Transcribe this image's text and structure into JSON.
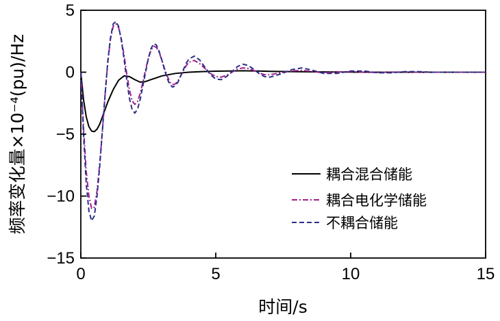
{
  "chart_data": {
    "type": "line",
    "xlabel": "时间/s",
    "ylabel": "频率变化量×10⁻⁴(pu)/Hz",
    "xlim": [
      0,
      15
    ],
    "ylim": [
      -15,
      5
    ],
    "x_ticks": [
      0,
      5,
      10,
      15
    ],
    "x_tick_labels": [
      "0",
      "5",
      "10",
      "15"
    ],
    "y_ticks": [
      5,
      0,
      -5,
      -10,
      -15
    ],
    "y_tick_labels": [
      "5",
      "0",
      "−5",
      "−10",
      "−15"
    ],
    "grid": false,
    "legend_position": "bottom-right",
    "series": [
      {
        "name": "耦合混合储能",
        "color": "#000000",
        "dash": "solid",
        "x": [
          0,
          0.1,
          0.2,
          0.3,
          0.4,
          0.5,
          0.6,
          0.7,
          0.8,
          0.9,
          1.0,
          1.2,
          1.4,
          1.6,
          1.8,
          2.0,
          2.2,
          2.4,
          2.6,
          2.8,
          3.0,
          3.5,
          4.0,
          4.5,
          5.0,
          5.5,
          6.0,
          6.5,
          7.0,
          8.0,
          9.0,
          10.0,
          11.0,
          12.0,
          13.0,
          14.0,
          15.0
        ],
        "y": [
          0,
          -2.2,
          -3.6,
          -4.4,
          -4.75,
          -4.8,
          -4.6,
          -4.2,
          -3.6,
          -3.0,
          -2.4,
          -1.4,
          -0.65,
          -0.3,
          -0.35,
          -0.6,
          -0.8,
          -0.75,
          -0.6,
          -0.45,
          -0.3,
          -0.1,
          0.0,
          0.05,
          0.08,
          0.1,
          0.12,
          0.1,
          0.07,
          0.04,
          0.02,
          0.01,
          0.0,
          0.0,
          0.0,
          0.0,
          0.0
        ]
      },
      {
        "name": "耦合电化学储能",
        "color": "#a0208c",
        "dash": "dashdot",
        "x": [
          0,
          0.1,
          0.2,
          0.3,
          0.4,
          0.5,
          0.6,
          0.7,
          0.8,
          0.9,
          1.0,
          1.1,
          1.2,
          1.3,
          1.4,
          1.5,
          1.6,
          1.7,
          1.8,
          1.9,
          2.0,
          2.1,
          2.2,
          2.3,
          2.4,
          2.5,
          2.6,
          2.7,
          2.8,
          2.9,
          3.0,
          3.1,
          3.2,
          3.3,
          3.4,
          3.5,
          3.6,
          3.7,
          3.8,
          3.9,
          4.0,
          4.2,
          4.4,
          4.6,
          4.8,
          5.0,
          5.2,
          5.4,
          5.6,
          5.8,
          6.0,
          6.2,
          6.4,
          6.6,
          6.8,
          7.0,
          7.4,
          7.8,
          8.2,
          8.6,
          9.0,
          9.5,
          10.0,
          10.5,
          11.0,
          11.5,
          12.0,
          12.5,
          13.0,
          14.0,
          15.0
        ],
        "y": [
          0,
          -4.5,
          -8.0,
          -10.0,
          -11.0,
          -10.9,
          -9.6,
          -7.4,
          -4.7,
          -1.8,
          0.8,
          2.7,
          3.7,
          3.9,
          3.6,
          2.7,
          1.4,
          -0.1,
          -1.4,
          -2.3,
          -2.6,
          -2.4,
          -1.7,
          -0.8,
          0.2,
          1.1,
          1.8,
          2.1,
          2.0,
          1.6,
          1.0,
          0.3,
          -0.3,
          -0.8,
          -1.0,
          -0.95,
          -0.7,
          -0.3,
          0.1,
          0.5,
          0.8,
          0.95,
          0.7,
          0.3,
          -0.1,
          -0.35,
          -0.4,
          -0.25,
          0.0,
          0.25,
          0.35,
          0.3,
          0.15,
          -0.05,
          -0.2,
          -0.2,
          -0.05,
          0.1,
          0.15,
          0.05,
          -0.05,
          0.02,
          0.05,
          0.0,
          -0.02,
          0.01,
          0.02,
          0.0,
          0.0,
          0.0,
          0.0
        ]
      },
      {
        "name": "不耦合储能",
        "color": "#2b2f88",
        "dash": "dashed",
        "x": [
          0,
          0.1,
          0.2,
          0.3,
          0.4,
          0.5,
          0.6,
          0.7,
          0.8,
          0.9,
          1.0,
          1.1,
          1.2,
          1.3,
          1.4,
          1.5,
          1.6,
          1.7,
          1.8,
          1.9,
          2.0,
          2.1,
          2.2,
          2.3,
          2.4,
          2.5,
          2.6,
          2.7,
          2.8,
          2.9,
          3.0,
          3.1,
          3.2,
          3.3,
          3.4,
          3.5,
          3.6,
          3.7,
          3.8,
          3.9,
          4.0,
          4.2,
          4.4,
          4.6,
          4.8,
          5.0,
          5.2,
          5.4,
          5.6,
          5.8,
          6.0,
          6.2,
          6.4,
          6.6,
          6.8,
          7.0,
          7.4,
          7.8,
          8.2,
          8.6,
          9.0,
          9.5,
          10.0,
          10.5,
          11.0,
          11.5,
          12.0,
          12.5,
          13.0,
          14.0,
          15.0
        ],
        "y": [
          0,
          -5.0,
          -9.0,
          -11.2,
          -12.0,
          -11.6,
          -10.0,
          -7.6,
          -4.7,
          -1.8,
          0.9,
          2.8,
          3.9,
          4.1,
          3.7,
          2.6,
          1.1,
          -0.6,
          -2.1,
          -3.0,
          -3.3,
          -3.0,
          -2.2,
          -1.1,
          0.0,
          1.1,
          1.9,
          2.3,
          2.2,
          1.7,
          1.0,
          0.2,
          -0.5,
          -1.0,
          -1.2,
          -1.1,
          -0.8,
          -0.3,
          0.2,
          0.7,
          1.05,
          1.3,
          1.0,
          0.4,
          -0.2,
          -0.55,
          -0.6,
          -0.35,
          0.05,
          0.45,
          0.65,
          0.55,
          0.25,
          -0.1,
          -0.35,
          -0.4,
          -0.15,
          0.2,
          0.35,
          0.15,
          -0.1,
          -0.1,
          0.1,
          0.1,
          -0.05,
          -0.05,
          0.05,
          0.05,
          0.0,
          0.0,
          0.0
        ]
      }
    ]
  }
}
